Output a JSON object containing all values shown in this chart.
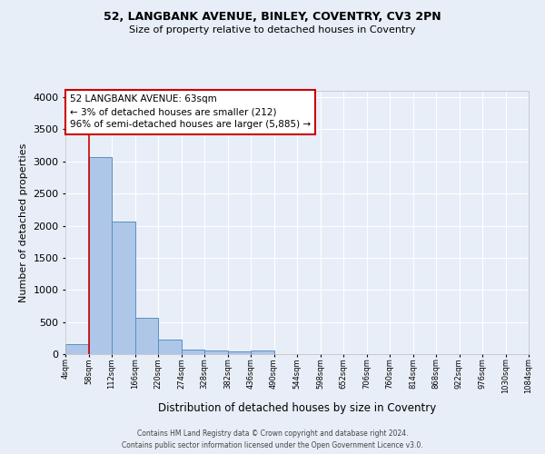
{
  "title1": "52, LANGBANK AVENUE, BINLEY, COVENTRY, CV3 2PN",
  "title2": "Size of property relative to detached houses in Coventry",
  "xlabel": "Distribution of detached houses by size in Coventry",
  "ylabel": "Number of detached properties",
  "bin_labels": [
    "4sqm",
    "58sqm",
    "112sqm",
    "166sqm",
    "220sqm",
    "274sqm",
    "328sqm",
    "382sqm",
    "436sqm",
    "490sqm",
    "544sqm",
    "598sqm",
    "652sqm",
    "706sqm",
    "760sqm",
    "814sqm",
    "868sqm",
    "922sqm",
    "976sqm",
    "1030sqm",
    "1084sqm"
  ],
  "bar_values": [
    150,
    3075,
    2060,
    560,
    220,
    75,
    50,
    40,
    50,
    0,
    0,
    0,
    0,
    0,
    0,
    0,
    0,
    0,
    0,
    0
  ],
  "bar_color": "#aec6e8",
  "bar_edge_color": "#5a8fc2",
  "bg_color": "#e8eef7",
  "grid_color": "#ffffff",
  "vline_x": 1,
  "vline_color": "#cc0000",
  "annotation_text": "52 LANGBANK AVENUE: 63sqm\n← 3% of detached houses are smaller (212)\n96% of semi-detached houses are larger (5,885) →",
  "annotation_box_color": "#ffffff",
  "annotation_box_edge": "#cc0000",
  "footnote": "Contains HM Land Registry data © Crown copyright and database right 2024.\nContains public sector information licensed under the Open Government Licence v3.0.",
  "ylim": [
    0,
    4100
  ],
  "yticks": [
    0,
    500,
    1000,
    1500,
    2000,
    2500,
    3000,
    3500,
    4000
  ]
}
